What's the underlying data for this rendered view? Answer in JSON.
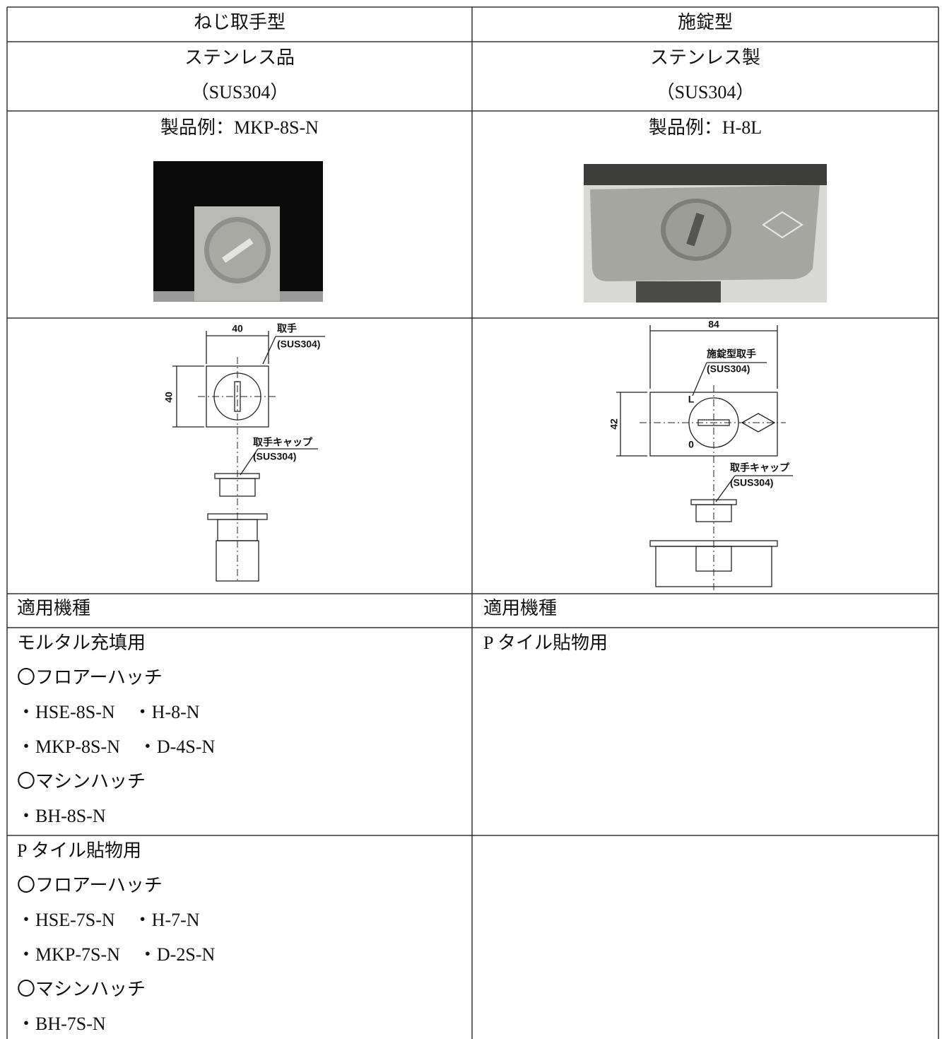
{
  "columns": [
    {
      "header": "ねじ取手型",
      "material": [
        "ステンレス品",
        "（SUS304）"
      ],
      "example": "製品例：MKP-8S-N",
      "drawing_labels": [
        "40",
        "取手",
        "(SUS304)",
        "40",
        "取手キャップ",
        "(SUS304)"
      ],
      "applicable_heading": "適用機種",
      "groups": [
        {
          "title": "モルタル充填用",
          "lines": [
            "〇フロアーハッチ",
            "・HSE-8S-N　・H-8-N",
            "・MKP-8S-N　・D-4S-N",
            "〇マシンハッチ",
            "・BH-8S-N"
          ]
        },
        {
          "title": "P タイル貼物用",
          "lines": [
            "〇フロアーハッチ",
            "・HSE-7S-N　・H-7-N",
            "・MKP-7S-N　・D-2S-N",
            "〇マシンハッチ",
            "・BH-7S-N"
          ]
        }
      ]
    },
    {
      "header": "施錠型",
      "material": [
        "ステンレス製",
        "（SUS304）"
      ],
      "example": "製品例：H-8L",
      "drawing_labels": [
        "84",
        "施錠型取手",
        "(SUS304)",
        "42",
        "L",
        "0",
        "取手キャップ",
        "(SUS304)"
      ],
      "applicable_heading": "適用機種",
      "groups": [
        {
          "title": "P タイル貼物用",
          "lines": []
        }
      ]
    }
  ]
}
